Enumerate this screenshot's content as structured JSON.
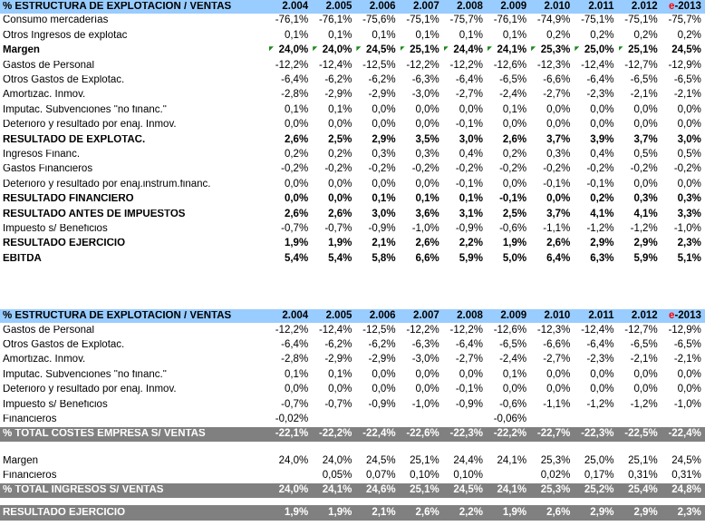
{
  "colors": {
    "header_bg": "#99CCFF",
    "bar_bg": "#808080",
    "bar_text": "#FFFFFF",
    "red": "#FF0000",
    "triangle_green": "#178A17",
    "text": "#000000"
  },
  "columns": [
    {
      "text": "2.004"
    },
    {
      "text": "2.005"
    },
    {
      "text": "2.006"
    },
    {
      "text": "2.007"
    },
    {
      "text": "2.008"
    },
    {
      "text": "2.009"
    },
    {
      "text": "2.010"
    },
    {
      "text": "2.011"
    },
    {
      "text": "2.012"
    },
    {
      "text": "e-2013",
      "red_prefix": "e",
      "rest": "-2013"
    }
  ],
  "table1": {
    "title": "% ESTRUCTURA DE EXPLOTACIÓN / VENTAS",
    "rows": [
      {
        "label": "Consumo mercaderías",
        "style": "normal",
        "values": [
          "-76,1%",
          "-76,1%",
          "-75,6%",
          "-75,1%",
          "-75,7%",
          "-76,1%",
          "-74,9%",
          "-75,1%",
          "-75,1%",
          "-75,7%"
        ]
      },
      {
        "label": "Otros Ingresos de explotac",
        "style": "normal",
        "values": [
          "0,1%",
          "0,1%",
          "0,1%",
          "0,1%",
          "0,1%",
          "0,1%",
          "0,2%",
          "0,2%",
          "0,2%",
          "0,2%"
        ]
      },
      {
        "label": "Margen",
        "style": "bold",
        "triangles": [
          0,
          1,
          2,
          3,
          4,
          5,
          6,
          7,
          8
        ],
        "values": [
          "24,0%",
          "24,0%",
          "24,5%",
          "25,1%",
          "24,4%",
          "24,1%",
          "25,3%",
          "25,0%",
          "25,1%",
          "24,5%"
        ]
      },
      {
        "label": "Gastos de Personal",
        "style": "normal",
        "values": [
          "-12,2%",
          "-12,4%",
          "-12,5%",
          "-12,2%",
          "-12,2%",
          "-12,6%",
          "-12,3%",
          "-12,4%",
          "-12,7%",
          "-12,9%"
        ]
      },
      {
        "label": "Otros Gastos de Explotac.",
        "style": "normal",
        "values": [
          "-6,4%",
          "-6,2%",
          "-6,2%",
          "-6,3%",
          "-6,4%",
          "-6,5%",
          "-6,6%",
          "-6,4%",
          "-6,5%",
          "-6,5%"
        ]
      },
      {
        "label": "Amortizac. Inmov.",
        "style": "normal",
        "values": [
          "-2,8%",
          "-2,9%",
          "-2,9%",
          "-3,0%",
          "-2,7%",
          "-2,4%",
          "-2,7%",
          "-2,3%",
          "-2,1%",
          "-2,1%"
        ]
      },
      {
        "label": "Imputac. Subvenciones \"no financ.\"",
        "style": "normal",
        "values": [
          "0,1%",
          "0,1%",
          "0,0%",
          "0,0%",
          "0,0%",
          "0,1%",
          "0,0%",
          "0,0%",
          "0,0%",
          "0,0%"
        ]
      },
      {
        "label": "Deterioro y resultado por enaj. Inmov.",
        "style": "normal",
        "values": [
          "0,0%",
          "0,0%",
          "0,0%",
          "0,0%",
          "-0,1%",
          "0,0%",
          "0,0%",
          "0,0%",
          "0,0%",
          "0,0%"
        ]
      },
      {
        "label": "RESULTADO DE EXPLOTAC.",
        "style": "bold",
        "values": [
          "2,6%",
          "2,5%",
          "2,9%",
          "3,5%",
          "3,0%",
          "2,6%",
          "3,7%",
          "3,9%",
          "3,7%",
          "3,0%"
        ]
      },
      {
        "label": "Ingresos Financ.",
        "style": "normal",
        "values": [
          "0,2%",
          "0,2%",
          "0,3%",
          "0,3%",
          "0,4%",
          "0,2%",
          "0,3%",
          "0,4%",
          "0,5%",
          "0,5%"
        ]
      },
      {
        "label": "Gastos Financieros",
        "style": "normal",
        "values": [
          "-0,2%",
          "-0,2%",
          "-0,2%",
          "-0,2%",
          "-0,2%",
          "-0,2%",
          "-0,2%",
          "-0,2%",
          "-0,2%",
          "-0,2%"
        ]
      },
      {
        "label": "Deterioro y resultado por enaj.instrum.financ.",
        "style": "normal",
        "values": [
          "0,0%",
          "0,0%",
          "0,0%",
          "0,0%",
          "-0,1%",
          "0,0%",
          "-0,1%",
          "-0,1%",
          "0,0%",
          "0,0%"
        ]
      },
      {
        "label": "RESULTADO FINANCIERO",
        "style": "bold",
        "values": [
          "0,0%",
          "0,0%",
          "0,1%",
          "0,1%",
          "0,1%",
          "-0,1%",
          "0,0%",
          "0,2%",
          "0,3%",
          "0,3%"
        ]
      },
      {
        "label": "RESULTADO ANTES DE IMPUESTOS",
        "style": "bold",
        "values": [
          "2,6%",
          "2,6%",
          "3,0%",
          "3,6%",
          "3,1%",
          "2,5%",
          "3,7%",
          "4,1%",
          "4,1%",
          "3,3%"
        ]
      },
      {
        "label": "Impuesto s/ Beneficios",
        "style": "normal",
        "values": [
          "-0,7%",
          "-0,7%",
          "-0,9%",
          "-1,0%",
          "-0,9%",
          "-0,6%",
          "-1,1%",
          "-1,2%",
          "-1,2%",
          "-1,0%"
        ]
      },
      {
        "label": "RESULTADO EJERCICIO",
        "style": "bold",
        "values": [
          "1,9%",
          "1,9%",
          "2,1%",
          "2,6%",
          "2,2%",
          "1,9%",
          "2,6%",
          "2,9%",
          "2,9%",
          "2,3%"
        ]
      },
      {
        "label": "EBITDA",
        "style": "bold",
        "values": [
          "5,4%",
          "5,4%",
          "5,8%",
          "6,6%",
          "5,9%",
          "5,0%",
          "6,4%",
          "6,3%",
          "5,9%",
          "5,1%"
        ]
      }
    ]
  },
  "table2": {
    "title": "% ESTRUCTURA DE EXPLOTACIÓN / VENTAS",
    "rows": [
      {
        "label": "Gastos de Personal",
        "style": "normal",
        "values": [
          "-12,2%",
          "-12,4%",
          "-12,5%",
          "-12,2%",
          "-12,2%",
          "-12,6%",
          "-12,3%",
          "-12,4%",
          "-12,7%",
          "-12,9%"
        ]
      },
      {
        "label": "Otros Gastos de Explotac.",
        "style": "normal",
        "values": [
          "-6,4%",
          "-6,2%",
          "-6,2%",
          "-6,3%",
          "-6,4%",
          "-6,5%",
          "-6,6%",
          "-6,4%",
          "-6,5%",
          "-6,5%"
        ]
      },
      {
        "label": "Amortizac. Inmov.",
        "style": "normal",
        "values": [
          "-2,8%",
          "-2,9%",
          "-2,9%",
          "-3,0%",
          "-2,7%",
          "-2,4%",
          "-2,7%",
          "-2,3%",
          "-2,1%",
          "-2,1%"
        ]
      },
      {
        "label": "Imputac. Subvenciones \"no financ.\"",
        "style": "normal",
        "values": [
          "0,1%",
          "0,1%",
          "0,0%",
          "0,0%",
          "0,0%",
          "0,1%",
          "0,0%",
          "0,0%",
          "0,0%",
          "0,0%"
        ]
      },
      {
        "label": "Deterioro y resultado por enaj. Inmov.",
        "style": "normal",
        "values": [
          "0,0%",
          "0,0%",
          "0,0%",
          "0,0%",
          "-0,1%",
          "0,0%",
          "0,0%",
          "0,0%",
          "0,0%",
          "0,0%"
        ]
      },
      {
        "label": "Impuesto s/ Beneficios",
        "style": "normal",
        "values": [
          "-0,7%",
          "-0,7%",
          "-0,9%",
          "-1,0%",
          "-0,9%",
          "-0,6%",
          "-1,1%",
          "-1,2%",
          "-1,2%",
          "-1,0%"
        ]
      },
      {
        "label": "Financieros",
        "style": "normal",
        "values": [
          "-0,02%",
          "",
          "",
          "",
          "",
          "-0,06%",
          "",
          "",
          "",
          ""
        ]
      },
      {
        "label": "% TOTAL COSTES EMPRESA S/ VENTAS",
        "style": "bar",
        "values": [
          "-22,1%",
          "-22,2%",
          "-22,4%",
          "-22,6%",
          "-22,3%",
          "-22,2%",
          "-22,7%",
          "-22,3%",
          "-22,5%",
          "-22,4%"
        ]
      },
      {
        "style": "spacer",
        "height": 13
      },
      {
        "label": "Margen",
        "style": "normal",
        "values": [
          "24,0%",
          "24,0%",
          "24,5%",
          "25,1%",
          "24,4%",
          "24,1%",
          "25,3%",
          "25,0%",
          "25,1%",
          "24,5%"
        ]
      },
      {
        "label": "Financieros",
        "style": "normal",
        "values": [
          "",
          "0,05%",
          "0,07%",
          "0,10%",
          "0,10%",
          "",
          "0,02%",
          "0,17%",
          "0,31%",
          "0,31%"
        ]
      },
      {
        "label": "% TOTAL INGRESOS S/ VENTAS",
        "style": "bar",
        "values": [
          "24,0%",
          "24,1%",
          "24,6%",
          "25,1%",
          "24,5%",
          "24,1%",
          "25,3%",
          "25,2%",
          "25,4%",
          "24,8%"
        ]
      },
      {
        "style": "spacer",
        "height": 8
      },
      {
        "label": "RESULTADO EJERCICIO",
        "style": "bar",
        "values": [
          "1,9%",
          "1,9%",
          "2,1%",
          "2,6%",
          "2,2%",
          "1,9%",
          "2,6%",
          "2,9%",
          "2,9%",
          "2,3%"
        ]
      }
    ]
  }
}
